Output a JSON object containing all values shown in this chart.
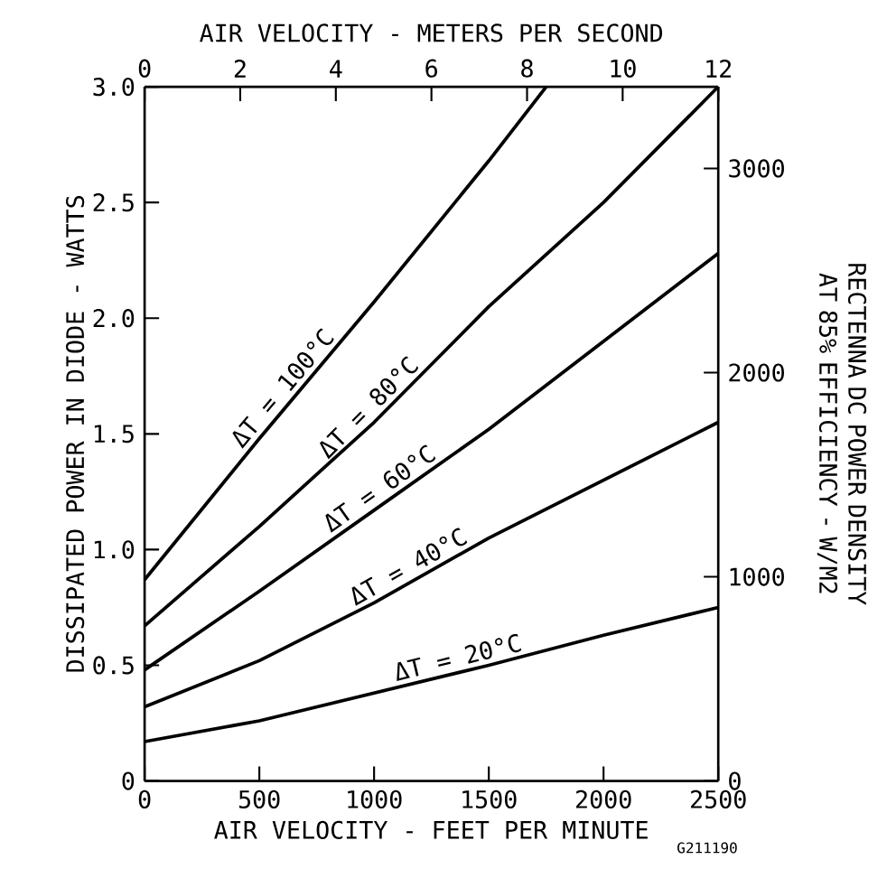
{
  "chart_data": {
    "type": "line",
    "xlabel": "AIR VELOCITY - FEET PER MINUTE",
    "ylabel": "DISSIPATED POWER IN DIODE - WATTS",
    "x2label": "AIR VELOCITY - METERS PER SECOND",
    "y2label": "RECTENNA DC POWER DENSITY AT 85% EFFICIENCY - W/M2",
    "xlim": [
      0,
      2500
    ],
    "xticks": [
      0,
      500,
      1000,
      1500,
      2000,
      2500
    ],
    "ylim": [
      0,
      3
    ],
    "yticks": [
      0,
      0.5,
      {
        "value": 1,
        "label": "1.0"
      },
      1.5,
      {
        "value": 2,
        "label": "2.0"
      },
      2.5,
      {
        "value": 3,
        "label": "3.0"
      }
    ],
    "x2lim": [
      0,
      12
    ],
    "x2ticks": [
      0,
      2,
      4,
      6,
      8,
      10,
      12
    ],
    "y2lim": [
      0,
      3400
    ],
    "y2ticks": [
      0,
      1000,
      2000,
      3000
    ],
    "grid": false,
    "line_style": "solid",
    "annotations": [
      "G211190"
    ],
    "series": [
      {
        "name": "ΔT = 20°C",
        "color": "#000000",
        "x": [
          0,
          500,
          1000,
          1500,
          2000,
          2500
        ],
        "values": [
          0.17,
          0.26,
          0.38,
          0.5,
          0.63,
          0.75
        ]
      },
      {
        "name": "ΔT = 40°C",
        "color": "#000000",
        "x": [
          0,
          500,
          1000,
          1500,
          2000,
          2500
        ],
        "values": [
          0.32,
          0.52,
          0.77,
          1.05,
          1.3,
          1.55
        ]
      },
      {
        "name": "ΔT = 60°C",
        "color": "#000000",
        "x": [
          0,
          500,
          1000,
          1500,
          2000,
          2500
        ],
        "values": [
          0.48,
          0.82,
          1.17,
          1.52,
          1.9,
          2.28
        ]
      },
      {
        "name": "ΔT = 80°C",
        "color": "#000000",
        "x": [
          0,
          500,
          1000,
          1500,
          2000,
          2500
        ],
        "values": [
          0.67,
          1.1,
          1.55,
          2.05,
          2.5,
          3.0
        ]
      },
      {
        "name": "ΔT = 100°C",
        "color": "#000000",
        "x": [
          0,
          500,
          1000,
          1500,
          1750
        ],
        "values": [
          0.87,
          1.48,
          2.07,
          2.68,
          3.0
        ]
      }
    ]
  }
}
